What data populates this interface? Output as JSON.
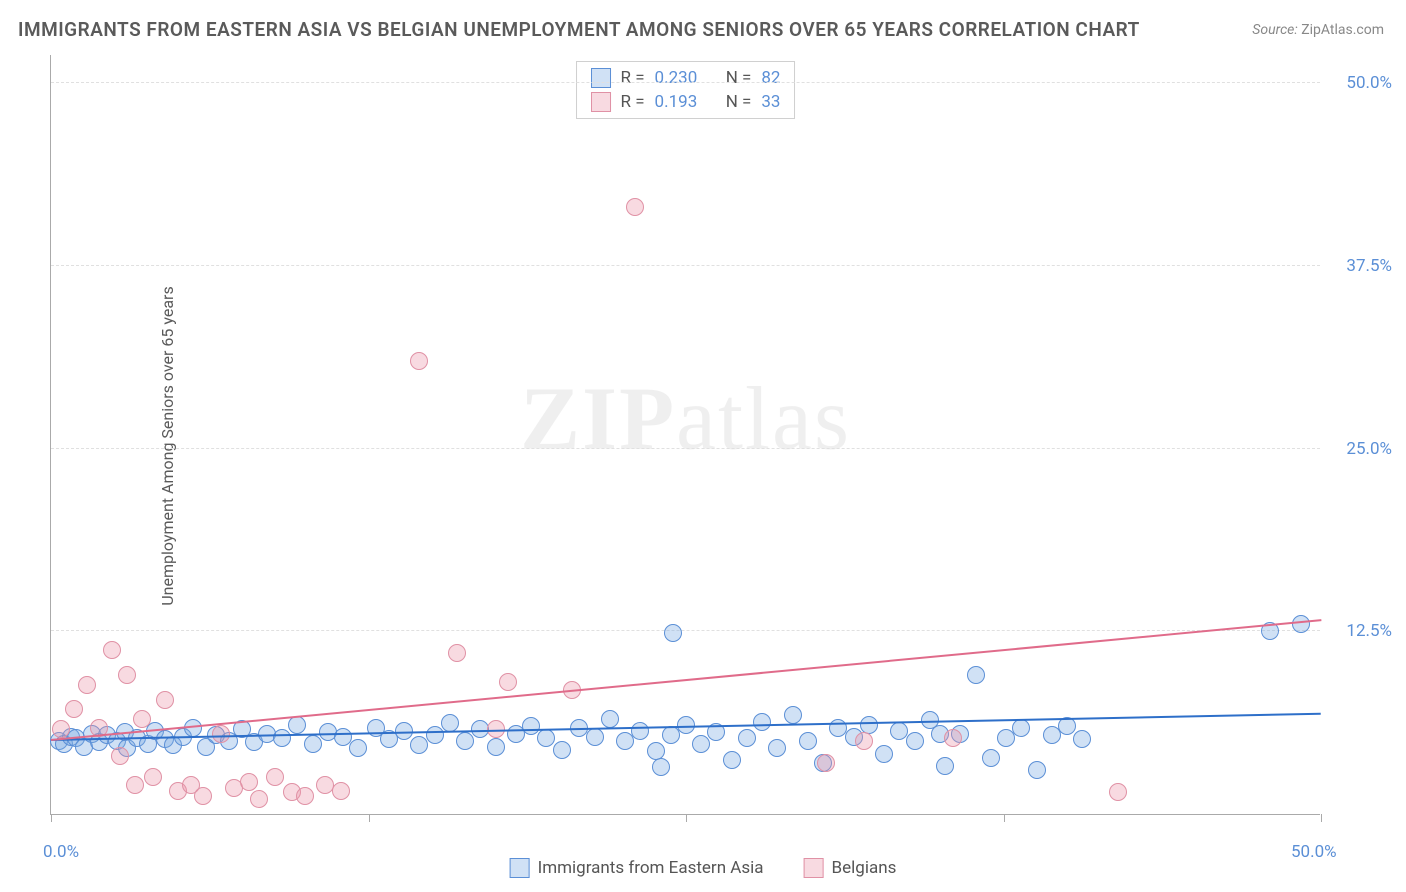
{
  "title": "IMMIGRANTS FROM EASTERN ASIA VS BELGIAN UNEMPLOYMENT AMONG SENIORS OVER 65 YEARS CORRELATION CHART",
  "source_label": "Source:",
  "source_value": "ZipAtlas.com",
  "ylabel": "Unemployment Among Seniors over 65 years",
  "watermark_bold": "ZIP",
  "watermark_rest": "atlas",
  "chart": {
    "type": "scatter",
    "xlim": [
      0,
      50
    ],
    "ylim": [
      0,
      52
    ],
    "xtick_positions": [
      0,
      12.5,
      25,
      37.5,
      50
    ],
    "xtick_labels_shown": {
      "0": "0.0%",
      "50": "50.0%"
    },
    "ytick_positions": [
      12.5,
      25,
      37.5,
      50
    ],
    "ytick_labels": [
      "12.5%",
      "25.0%",
      "37.5%",
      "50.0%"
    ],
    "grid_color": "#e0e0e0",
    "background_color": "#ffffff",
    "axis_color": "#aaaaaa",
    "tick_label_color": "#5b8fd6",
    "marker_radius": 9,
    "series": [
      {
        "name": "Immigrants from Eastern Asia",
        "fill": "rgba(120,170,225,0.35)",
        "stroke": "#5b8fd6",
        "trend_color": "#2e6fc9",
        "trend_width": 2,
        "trend": {
          "x1": 0,
          "y1": 5.0,
          "x2": 50,
          "y2": 6.8
        },
        "R": "0.230",
        "N": "82",
        "points": [
          [
            0.3,
            5.0
          ],
          [
            0.5,
            4.8
          ],
          [
            0.8,
            5.3
          ],
          [
            1.0,
            5.2
          ],
          [
            1.3,
            4.6
          ],
          [
            1.6,
            5.5
          ],
          [
            1.9,
            4.9
          ],
          [
            2.2,
            5.4
          ],
          [
            2.6,
            5.0
          ],
          [
            2.9,
            5.6
          ],
          [
            3.0,
            4.5
          ],
          [
            3.4,
            5.2
          ],
          [
            3.8,
            4.8
          ],
          [
            4.1,
            5.7
          ],
          [
            4.5,
            5.1
          ],
          [
            4.8,
            4.7
          ],
          [
            5.2,
            5.3
          ],
          [
            5.6,
            5.9
          ],
          [
            6.1,
            4.6
          ],
          [
            6.5,
            5.4
          ],
          [
            7.0,
            5.0
          ],
          [
            7.5,
            5.8
          ],
          [
            8.0,
            4.9
          ],
          [
            8.5,
            5.5
          ],
          [
            9.1,
            5.2
          ],
          [
            9.7,
            6.1
          ],
          [
            10.3,
            4.8
          ],
          [
            10.9,
            5.6
          ],
          [
            11.5,
            5.3
          ],
          [
            12.1,
            4.5
          ],
          [
            12.8,
            5.9
          ],
          [
            13.3,
            5.1
          ],
          [
            13.9,
            5.7
          ],
          [
            14.5,
            4.7
          ],
          [
            15.1,
            5.4
          ],
          [
            15.7,
            6.2
          ],
          [
            16.3,
            5.0
          ],
          [
            16.9,
            5.8
          ],
          [
            17.5,
            4.6
          ],
          [
            18.3,
            5.5
          ],
          [
            18.9,
            6.0
          ],
          [
            19.5,
            5.2
          ],
          [
            20.1,
            4.4
          ],
          [
            20.8,
            5.9
          ],
          [
            21.4,
            5.3
          ],
          [
            22.0,
            6.5
          ],
          [
            22.6,
            5.0
          ],
          [
            23.2,
            5.7
          ],
          [
            23.8,
            4.3
          ],
          [
            24.4,
            5.4
          ],
          [
            24.5,
            12.4
          ],
          [
            25.0,
            6.1
          ],
          [
            25.6,
            4.8
          ],
          [
            26.2,
            5.6
          ],
          [
            26.8,
            3.7
          ],
          [
            27.4,
            5.2
          ],
          [
            28.0,
            6.3
          ],
          [
            28.6,
            4.5
          ],
          [
            29.2,
            6.8
          ],
          [
            29.8,
            5.0
          ],
          [
            30.4,
            3.5
          ],
          [
            31.0,
            5.9
          ],
          [
            31.6,
            5.3
          ],
          [
            32.2,
            6.1
          ],
          [
            32.8,
            4.1
          ],
          [
            33.4,
            5.7
          ],
          [
            34.0,
            5.0
          ],
          [
            34.6,
            6.4
          ],
          [
            35.2,
            3.3
          ],
          [
            35.8,
            5.5
          ],
          [
            36.4,
            9.5
          ],
          [
            37.0,
            3.8
          ],
          [
            37.6,
            5.2
          ],
          [
            38.2,
            5.9
          ],
          [
            38.8,
            3.0
          ],
          [
            39.4,
            5.4
          ],
          [
            40.0,
            6.0
          ],
          [
            40.6,
            5.1
          ],
          [
            48.0,
            12.5
          ],
          [
            49.2,
            13.0
          ],
          [
            35.0,
            5.5
          ],
          [
            24.0,
            3.2
          ]
        ]
      },
      {
        "name": "Belgians",
        "fill": "rgba(235,150,170,0.35)",
        "stroke": "#e091a5",
        "trend_color": "#e06b8a",
        "trend_width": 2,
        "trend": {
          "x1": 0,
          "y1": 5.0,
          "x2": 50,
          "y2": 13.2
        },
        "R": "0.193",
        "N": "33",
        "points": [
          [
            0.4,
            5.8
          ],
          [
            0.9,
            7.2
          ],
          [
            1.4,
            8.8
          ],
          [
            1.9,
            5.9
          ],
          [
            2.4,
            11.2
          ],
          [
            2.7,
            4.0
          ],
          [
            3.0,
            9.5
          ],
          [
            3.3,
            2.0
          ],
          [
            3.6,
            6.5
          ],
          [
            4.0,
            2.5
          ],
          [
            4.5,
            7.8
          ],
          [
            5.0,
            1.6
          ],
          [
            5.5,
            2.0
          ],
          [
            6.0,
            1.2
          ],
          [
            6.7,
            5.5
          ],
          [
            7.2,
            1.8
          ],
          [
            7.8,
            2.2
          ],
          [
            8.2,
            1.0
          ],
          [
            8.8,
            2.5
          ],
          [
            9.5,
            1.5
          ],
          [
            10.0,
            1.2
          ],
          [
            10.8,
            2.0
          ],
          [
            11.4,
            1.6
          ],
          [
            14.5,
            31.0
          ],
          [
            16.0,
            11.0
          ],
          [
            17.5,
            5.8
          ],
          [
            18.0,
            9.0
          ],
          [
            20.5,
            8.5
          ],
          [
            23.0,
            41.5
          ],
          [
            30.5,
            3.5
          ],
          [
            32.0,
            5.0
          ],
          [
            35.5,
            5.2
          ],
          [
            42.0,
            1.5
          ]
        ]
      }
    ]
  },
  "stats_box": {
    "r_label": "R =",
    "n_label": "N ="
  },
  "legend": {
    "series1_label": "Immigrants from Eastern Asia",
    "series2_label": "Belgians"
  }
}
